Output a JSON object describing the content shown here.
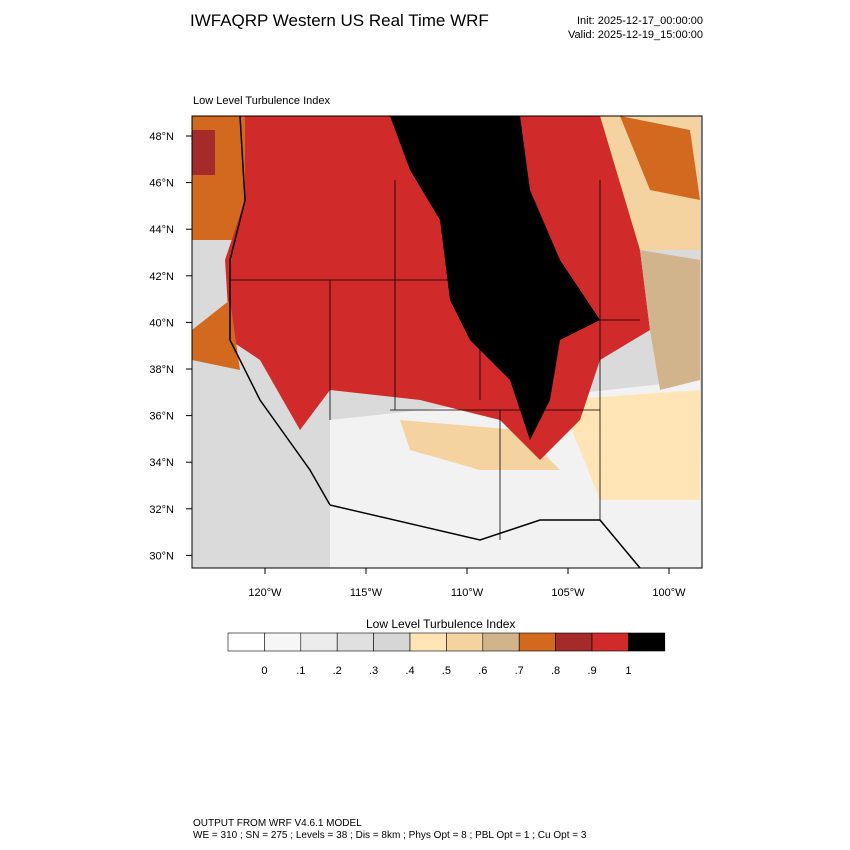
{
  "header": {
    "title": "IWFAQRP Western US Real Time WRF",
    "init": "Init: 2025-12-17_00:00:00",
    "valid": "Valid: 2025-12-19_15:00:00"
  },
  "map": {
    "subtitle": "Low Level Turbulence Index",
    "lat_labels": [
      "48°N",
      "46°N",
      "44°N",
      "42°N",
      "40°N",
      "38°N",
      "36°N",
      "34°N",
      "32°N",
      "30°N"
    ],
    "lon_labels": [
      "120°W",
      "115°W",
      "110°W",
      "105°W",
      "100°W"
    ]
  },
  "colorbar": {
    "title": "Low Level Turbulence Index",
    "colors": [
      "#ffffff",
      "#f6f6f6",
      "#ececec",
      "#e0e0e0",
      "#d6d6d6",
      "#ffe4b5",
      "#f5d3a1",
      "#d2b48c",
      "#d2691e",
      "#a52a2a",
      "#d12a2a",
      "#000000"
    ],
    "labels": [
      "0",
      ".1",
      ".2",
      ".3",
      ".4",
      ".5",
      ".6",
      ".7",
      ".8",
      ".9",
      "1"
    ]
  },
  "footer": {
    "line1": "OUTPUT FROM WRF V4.6.1 MODEL",
    "line2": "WE = 310 ; SN = 275 ; Levels = 38 ; Dis = 8km ; Phys Opt = 8 ; PBL Opt = 1 ; Cu Opt = 3"
  }
}
